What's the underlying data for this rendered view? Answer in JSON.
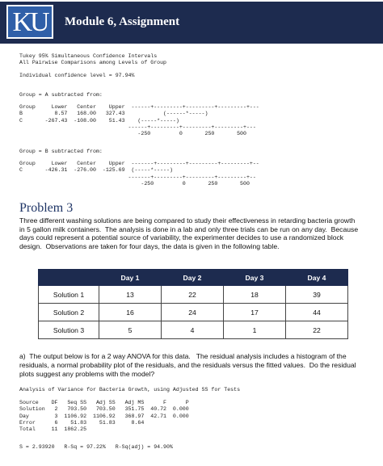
{
  "header": {
    "logo": "KU",
    "title": "Module 6, Assignment"
  },
  "tukey": {
    "title_lines": [
      "Tukey 95% Simultaneous Confidence Intervals",
      "All Pairwise Comparisons among Levels of Group"
    ],
    "confidence": "Individual confidence level = 97.94%",
    "groups": [
      {
        "heading": "Group = A subtracted from:",
        "lines": [
          "Group     Lower   Center    Upper  ------+---------+---------+---------+---",
          "B          8.57   168.00   327.43            (------*-----)",
          "C       -267.43  -108.00    51.43    (-----*-----)",
          "                                  ------+---------+---------+---------+---",
          "                                     -250         0       250       500"
        ]
      },
      {
        "heading": "Group = B subtracted from:",
        "lines": [
          "Group     Lower   Center    Upper  -------+---------+---------+---------+--",
          "C       -426.31  -276.00  -125.69  (-----*-----)",
          "                                  -------+---------+---------+---------+--",
          "                                      -250         0       250       500"
        ]
      }
    ]
  },
  "problem": {
    "heading": "Problem 3",
    "paragraph": [
      "Three different washing solutions are being compared to study their effectiveness in retarding bacteria growth",
      "in 5 gallon milk containers.  The analysis is done in a lab and only three trials can be run on any day.  Because",
      "days could represent a potential source of variability, the experimenter decides to use a randomized block",
      "design.  Observations are taken for four days, the data is given in the following table."
    ]
  },
  "table": {
    "header": [
      "Day 1",
      "Day 2",
      "Day 3",
      "Day 4"
    ],
    "rows": [
      {
        "label": "Solution 1",
        "values": [
          "13",
          "22",
          "18",
          "39"
        ]
      },
      {
        "label": "Solution 2",
        "values": [
          "16",
          "24",
          "17",
          "44"
        ]
      },
      {
        "label": "Solution 3",
        "values": [
          "5",
          "4",
          "1",
          "22"
        ]
      }
    ]
  },
  "question": [
    "a)  The output below is for a 2 way ANOVA for this data.   The residual analysis includes a histogram of the",
    "residuals, a normal probability plot of the residuals, and the residuals versus the fitted values.  Do the residual",
    "plots suggest any problems with the model?"
  ],
  "anova": {
    "title": "Analysis of Variance for Bacteria Growth, using Adjusted SS for Tests",
    "lines": [
      "Source    DF   Seq SS   Adj SS   Adj MS      F      P",
      "Solution   2   703.50   703.50   351.75  40.72  0.000",
      "Day        3  1106.92  1106.92   368.97  42.71  0.000",
      "Error      6    51.83    51.83     8.64",
      "Total     11  1862.25"
    ],
    "summary": "S = 2.93920   R-Sq = 97.22%   R-Sq(adj) = 94.90%"
  }
}
